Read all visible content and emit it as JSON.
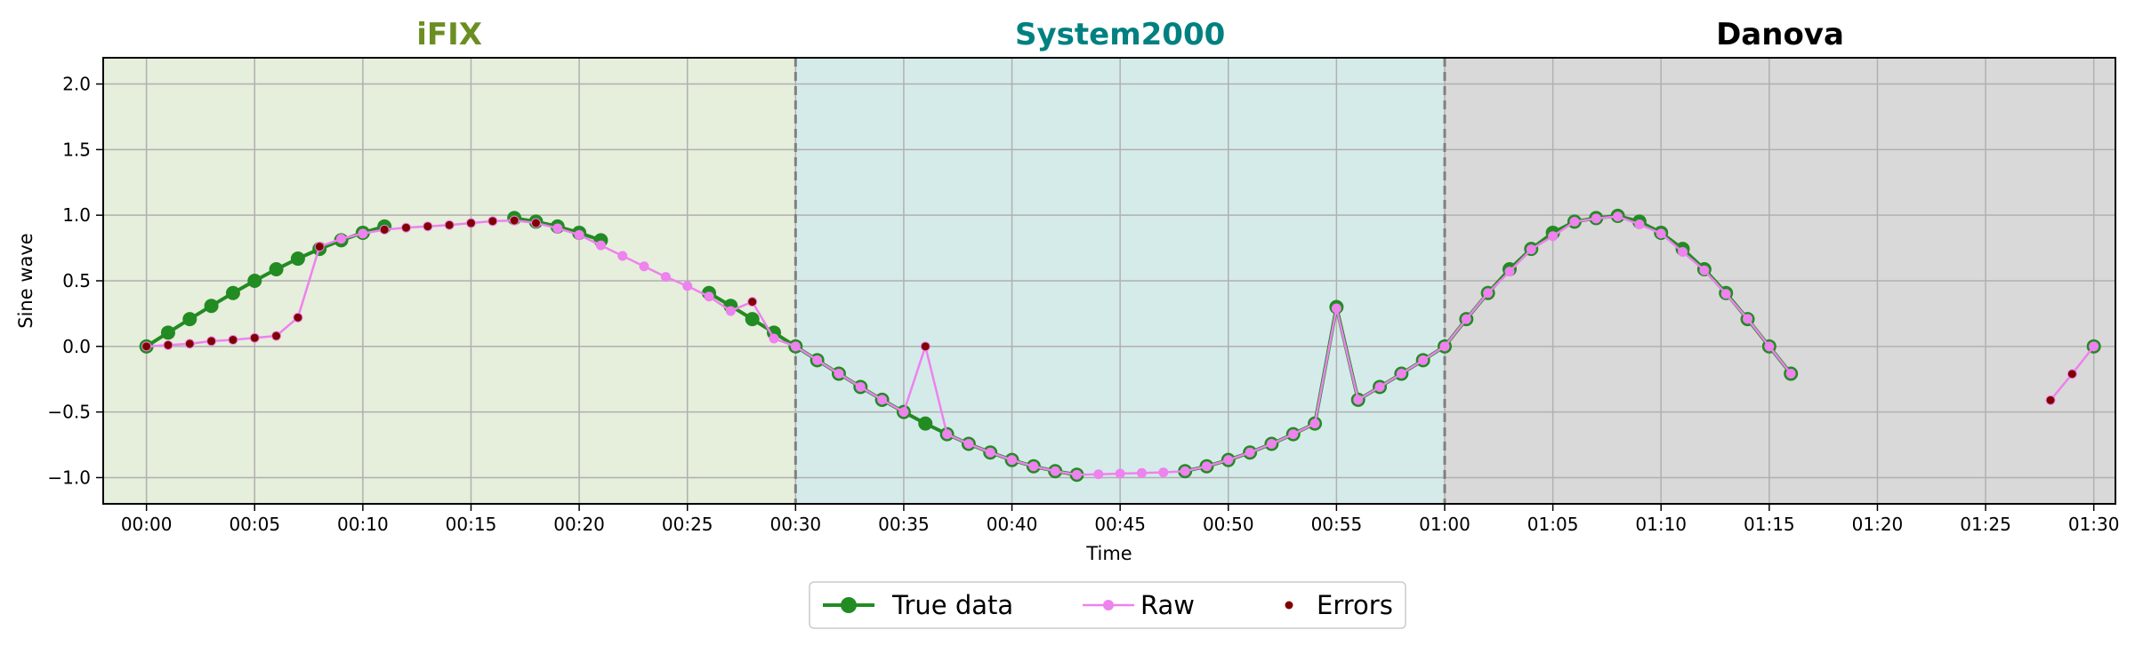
{
  "chart_data": {
    "type": "line",
    "xlabel": "Time",
    "ylabel": "Sine wave",
    "xlim": [
      -2,
      91
    ],
    "ylim": [
      -1.2,
      2.2
    ],
    "grid": true,
    "x_unit": "minutes",
    "x_ticks": [
      {
        "value": 0,
        "label": "00:00"
      },
      {
        "value": 5,
        "label": "00:05"
      },
      {
        "value": 10,
        "label": "00:10"
      },
      {
        "value": 15,
        "label": "00:15"
      },
      {
        "value": 20,
        "label": "00:20"
      },
      {
        "value": 25,
        "label": "00:25"
      },
      {
        "value": 30,
        "label": "00:30"
      },
      {
        "value": 35,
        "label": "00:35"
      },
      {
        "value": 40,
        "label": "00:40"
      },
      {
        "value": 45,
        "label": "00:45"
      },
      {
        "value": 50,
        "label": "00:50"
      },
      {
        "value": 55,
        "label": "00:55"
      },
      {
        "value": 60,
        "label": "01:00"
      },
      {
        "value": 65,
        "label": "01:05"
      },
      {
        "value": 70,
        "label": "01:10"
      },
      {
        "value": 75,
        "label": "01:15"
      },
      {
        "value": 80,
        "label": "01:20"
      },
      {
        "value": 85,
        "label": "01:25"
      },
      {
        "value": 90,
        "label": "01:30"
      }
    ],
    "y_ticks": [
      {
        "value": -1.0,
        "label": "−1.0"
      },
      {
        "value": -0.5,
        "label": "−0.5"
      },
      {
        "value": 0.0,
        "label": "0.0"
      },
      {
        "value": 0.5,
        "label": "0.5"
      },
      {
        "value": 1.0,
        "label": "1.0"
      },
      {
        "value": 1.5,
        "label": "1.5"
      },
      {
        "value": 2.0,
        "label": "2.0"
      }
    ],
    "regions": [
      {
        "label": "iFIX",
        "from": -2,
        "to": 30,
        "fill": "#e6eedc",
        "label_color": "#6b8e23"
      },
      {
        "label": "System2000",
        "from": 30,
        "to": 60,
        "fill": "#d5ebea",
        "label_color": "#008080"
      },
      {
        "label": "Danova",
        "from": 60,
        "to": 91,
        "fill": "#d9d9d9",
        "label_color": "#000000"
      }
    ],
    "boundaries": [
      30,
      60
    ],
    "legend": {
      "placement": "bottom-center",
      "entries": [
        {
          "label": "True data",
          "key": "true"
        },
        {
          "label": "Raw",
          "key": "raw"
        },
        {
          "label": "Errors",
          "key": "errors"
        }
      ]
    },
    "colors": {
      "true": "#228b22",
      "raw": "#ee82ee",
      "errors": "#800000"
    },
    "series": [
      {
        "key": "true",
        "segments": [
          [
            [
              0,
              0.0
            ],
            [
              1,
              0.105
            ],
            [
              2,
              0.208
            ],
            [
              3,
              0.309
            ],
            [
              4,
              0.407
            ],
            [
              5,
              0.5
            ],
            [
              6,
              0.588
            ],
            [
              7,
              0.669
            ],
            [
              8,
              0.743
            ],
            [
              9,
              0.809
            ],
            [
              10,
              0.866
            ],
            [
              11,
              0.914
            ]
          ],
          [
            [
              17,
              0.978
            ],
            [
              18,
              0.951
            ],
            [
              19,
              0.914
            ],
            [
              20,
              0.866
            ],
            [
              21,
              0.809
            ]
          ],
          [
            [
              26,
              0.407
            ],
            [
              27,
              0.309
            ],
            [
              28,
              0.208
            ],
            [
              29,
              0.105
            ],
            [
              30,
              0.0
            ],
            [
              31,
              -0.105
            ],
            [
              32,
              -0.208
            ],
            [
              33,
              -0.309
            ],
            [
              34,
              -0.407
            ],
            [
              35,
              -0.5
            ],
            [
              36,
              -0.588
            ],
            [
              37,
              -0.669
            ],
            [
              38,
              -0.743
            ],
            [
              39,
              -0.809
            ],
            [
              40,
              -0.866
            ],
            [
              41,
              -0.914
            ],
            [
              42,
              -0.951
            ],
            [
              43,
              -0.978
            ]
          ],
          [
            [
              48,
              -0.951
            ],
            [
              49,
              -0.914
            ],
            [
              50,
              -0.866
            ],
            [
              51,
              -0.809
            ],
            [
              52,
              -0.743
            ],
            [
              53,
              -0.669
            ],
            [
              54,
              -0.588
            ],
            [
              55,
              0.3
            ],
            [
              56,
              -0.407
            ],
            [
              57,
              -0.309
            ],
            [
              58,
              -0.208
            ],
            [
              59,
              -0.105
            ],
            [
              60,
              0.0
            ],
            [
              61,
              0.208
            ],
            [
              62,
              0.407
            ],
            [
              63,
              0.588
            ],
            [
              64,
              0.743
            ],
            [
              65,
              0.866
            ],
            [
              66,
              0.951
            ],
            [
              67,
              0.978
            ],
            [
              68,
              0.995
            ],
            [
              69,
              0.951
            ],
            [
              70,
              0.866
            ],
            [
              71,
              0.743
            ],
            [
              72,
              0.588
            ],
            [
              73,
              0.407
            ],
            [
              74,
              0.208
            ],
            [
              75,
              0.0
            ],
            [
              76,
              -0.208
            ]
          ],
          [
            [
              90,
              0.0
            ]
          ]
        ]
      },
      {
        "key": "raw",
        "segments": [
          [
            [
              0,
              0.0
            ],
            [
              1,
              0.01
            ],
            [
              2,
              0.02
            ],
            [
              3,
              0.04
            ],
            [
              4,
              0.05
            ],
            [
              5,
              0.065
            ],
            [
              6,
              0.08
            ],
            [
              7,
              0.22
            ],
            [
              8,
              0.76
            ],
            [
              9,
              0.82
            ],
            [
              10,
              0.86
            ],
            [
              11,
              0.89
            ],
            [
              12,
              0.905
            ],
            [
              13,
              0.915
            ],
            [
              14,
              0.925
            ],
            [
              15,
              0.94
            ],
            [
              16,
              0.955
            ],
            [
              17,
              0.96
            ],
            [
              18,
              0.94
            ],
            [
              19,
              0.9
            ],
            [
              20,
              0.85
            ],
            [
              21,
              0.77
            ],
            [
              22,
              0.69
            ],
            [
              23,
              0.61
            ],
            [
              24,
              0.53
            ],
            [
              25,
              0.46
            ],
            [
              26,
              0.38
            ],
            [
              27,
              0.27
            ],
            [
              28,
              0.34
            ],
            [
              29,
              0.06
            ],
            [
              30,
              0.0
            ],
            [
              31,
              -0.105
            ],
            [
              32,
              -0.208
            ],
            [
              33,
              -0.309
            ],
            [
              34,
              -0.407
            ],
            [
              35,
              -0.5
            ],
            [
              36,
              0.0
            ],
            [
              37,
              -0.669
            ],
            [
              38,
              -0.743
            ],
            [
              39,
              -0.809
            ],
            [
              40,
              -0.866
            ],
            [
              41,
              -0.914
            ],
            [
              42,
              -0.951
            ],
            [
              43,
              -0.978
            ],
            [
              44,
              -0.975
            ],
            [
              45,
              -0.97
            ],
            [
              46,
              -0.965
            ],
            [
              47,
              -0.96
            ],
            [
              48,
              -0.951
            ],
            [
              49,
              -0.914
            ],
            [
              50,
              -0.866
            ],
            [
              51,
              -0.809
            ],
            [
              52,
              -0.743
            ],
            [
              53,
              -0.669
            ],
            [
              54,
              -0.588
            ],
            [
              55,
              0.29
            ],
            [
              56,
              -0.407
            ],
            [
              57,
              -0.309
            ],
            [
              58,
              -0.208
            ],
            [
              59,
              -0.105
            ],
            [
              60,
              0.0
            ],
            [
              61,
              0.208
            ],
            [
              62,
              0.407
            ],
            [
              63,
              0.57
            ],
            [
              64,
              0.74
            ],
            [
              65,
              0.84
            ],
            [
              66,
              0.95
            ],
            [
              67,
              0.975
            ],
            [
              68,
              0.99
            ],
            [
              69,
              0.93
            ],
            [
              70,
              0.86
            ],
            [
              71,
              0.72
            ],
            [
              72,
              0.58
            ],
            [
              73,
              0.4
            ],
            [
              74,
              0.21
            ],
            [
              75,
              0.0
            ],
            [
              76,
              -0.208
            ]
          ],
          [
            [
              88,
              -0.41
            ],
            [
              89,
              -0.21
            ],
            [
              90,
              0.0
            ]
          ]
        ]
      },
      {
        "key": "errors",
        "points": [
          [
            0,
            0.0
          ],
          [
            1,
            0.01
          ],
          [
            2,
            0.02
          ],
          [
            3,
            0.04
          ],
          [
            4,
            0.05
          ],
          [
            5,
            0.065
          ],
          [
            6,
            0.08
          ],
          [
            7,
            0.22
          ],
          [
            8,
            0.76
          ],
          [
            11,
            0.89
          ],
          [
            12,
            0.905
          ],
          [
            13,
            0.915
          ],
          [
            14,
            0.925
          ],
          [
            15,
            0.94
          ],
          [
            16,
            0.955
          ],
          [
            17,
            0.96
          ],
          [
            18,
            0.94
          ],
          [
            28,
            0.34
          ],
          [
            36,
            0.0
          ],
          [
            88,
            -0.41
          ],
          [
            89,
            -0.21
          ]
        ]
      }
    ]
  }
}
